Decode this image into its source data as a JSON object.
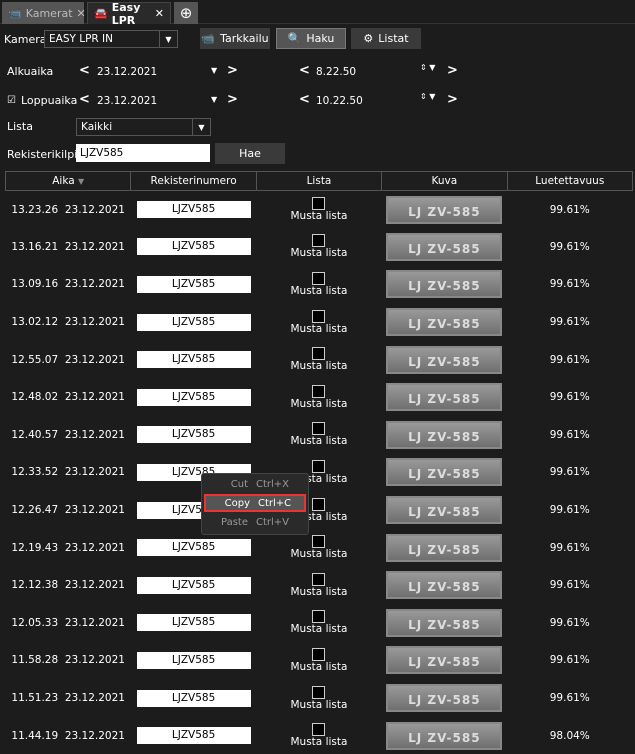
{
  "tabs": [
    {
      "label": "Kamerat",
      "icon": "camera-icon"
    },
    {
      "label": "Easy LPR",
      "icon": "car-icon"
    }
  ],
  "toolbar": {
    "camera_label": "Kamera:",
    "camera_value": "EASY LPR IN",
    "monitor": "Tarkkailu",
    "search": "Haku",
    "lists": "Listat"
  },
  "filters": {
    "start_label": "Alkuaika",
    "start_date": "23.12.2021",
    "start_time": "8.22.50",
    "end_label": "Loppuaika",
    "end_checked": true,
    "end_date": "23.12.2021",
    "end_time": "10.22.50",
    "list_label": "Lista",
    "list_value": "Kaikki",
    "plate_label": "Rekisterikilpi",
    "plate_value": "LJZV585",
    "search_button": "Hae"
  },
  "table": {
    "headers": [
      "Aika",
      "Rekisterinumero",
      "Lista",
      "Kuva",
      "Luetettavuus"
    ],
    "rows": [
      {
        "time": "13.23.26",
        "date": "23.12.2021",
        "plate": "LJZV585",
        "list": "Musta lista",
        "image": "LJ ZV-585",
        "confidence": "99.61%"
      },
      {
        "time": "13.16.21",
        "date": "23.12.2021",
        "plate": "LJZV585",
        "list": "Musta lista",
        "image": "LJ ZV-585",
        "confidence": "99.61%"
      },
      {
        "time": "13.09.16",
        "date": "23.12.2021",
        "plate": "LJZV585",
        "list": "Musta lista",
        "image": "LJ ZV-585",
        "confidence": "99.61%"
      },
      {
        "time": "13.02.12",
        "date": "23.12.2021",
        "plate": "LJZV585",
        "list": "Musta lista",
        "image": "LJ ZV-585",
        "confidence": "99.61%"
      },
      {
        "time": "12.55.07",
        "date": "23.12.2021",
        "plate": "LJZV585",
        "list": "Musta lista",
        "image": "LJ ZV-585",
        "confidence": "99.61%"
      },
      {
        "time": "12.48.02",
        "date": "23.12.2021",
        "plate": "LJZV585",
        "list": "Musta lista",
        "image": "LJ ZV-585",
        "confidence": "99.61%"
      },
      {
        "time": "12.40.57",
        "date": "23.12.2021",
        "plate": "LJZV585",
        "list": "Musta lista",
        "image": "LJ ZV-585",
        "confidence": "99.61%"
      },
      {
        "time": "12.33.52",
        "date": "23.12.2021",
        "plate": "LJZV585",
        "list": "Musta lista",
        "image": "LJ ZV-585",
        "confidence": "99.61%"
      },
      {
        "time": "12.26.47",
        "date": "23.12.2021",
        "plate": "LJZV585",
        "list": "Musta lista",
        "image": "LJ ZV-585",
        "confidence": "99.61%"
      },
      {
        "time": "12.19.43",
        "date": "23.12.2021",
        "plate": "LJZV585",
        "list": "Musta lista",
        "image": "LJ ZV-585",
        "confidence": "99.61%"
      },
      {
        "time": "12.12.38",
        "date": "23.12.2021",
        "plate": "LJZV585",
        "list": "Musta lista",
        "image": "LJ ZV-585",
        "confidence": "99.61%"
      },
      {
        "time": "12.05.33",
        "date": "23.12.2021",
        "plate": "LJZV585",
        "list": "Musta lista",
        "image": "LJ ZV-585",
        "confidence": "99.61%"
      },
      {
        "time": "11.58.28",
        "date": "23.12.2021",
        "plate": "LJZV585",
        "list": "Musta lista",
        "image": "LJ ZV-585",
        "confidence": "99.61%"
      },
      {
        "time": "11.51.23",
        "date": "23.12.2021",
        "plate": "LJZV585",
        "list": "Musta lista",
        "image": "LJ ZV-585",
        "confidence": "99.61%"
      },
      {
        "time": "11.44.19",
        "date": "23.12.2021",
        "plate": "LJZV585",
        "list": "Musta lista",
        "image": "LJ ZV-585",
        "confidence": "98.04%"
      }
    ]
  },
  "context_menu": [
    {
      "label": "Cut",
      "shortcut": "Ctrl+X"
    },
    {
      "label": "Copy",
      "shortcut": "Ctrl+C",
      "highlighted": true
    },
    {
      "label": "Paste",
      "shortcut": "Ctrl+V"
    }
  ],
  "colors": {
    "highlight_border": "#e33333",
    "background": "#1c1c1c"
  }
}
